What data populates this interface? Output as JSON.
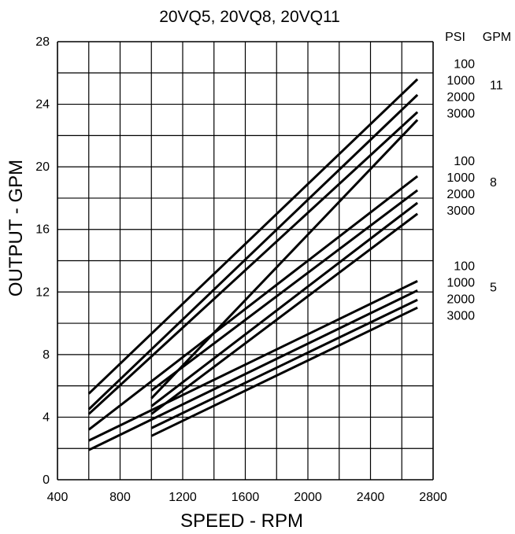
{
  "chart_data": {
    "type": "line",
    "title": "20VQ5, 20VQ8, 20VQ11",
    "xlabel": "SPEED - RPM",
    "ylabel": "OUTPUT - GPM",
    "xlim": [
      400,
      2800
    ],
    "ylim": [
      0,
      28
    ],
    "xticks": [
      "400",
      "800",
      "1200",
      "1600",
      "2000",
      "2400",
      "2800"
    ],
    "yticks": [
      "0",
      "4",
      "8",
      "12",
      "16",
      "20",
      "24",
      "28"
    ],
    "grid": true,
    "legend_headers": {
      "psi": "PSI",
      "gpm": "GPM"
    },
    "groups": [
      {
        "gpm": "11",
        "series": [
          {
            "name": "100",
            "x": [
              600,
              2700
            ],
            "y": [
              5.5,
              25.6
            ]
          },
          {
            "name": "1000",
            "x": [
              600,
              2700
            ],
            "y": [
              4.5,
              24.6
            ]
          },
          {
            "name": "2000",
            "x": [
              600,
              2700
            ],
            "y": [
              4.2,
              23.5
            ]
          },
          {
            "name": "3000",
            "x": [
              1000,
              2700
            ],
            "y": [
              5.2,
              23.0
            ]
          }
        ]
      },
      {
        "gpm": "8",
        "series": [
          {
            "name": "100",
            "x": [
              600,
              2700
            ],
            "y": [
              3.2,
              19.4
            ]
          },
          {
            "name": "1000",
            "x": [
              1000,
              2700
            ],
            "y": [
              5.7,
              18.5
            ]
          },
          {
            "name": "2000",
            "x": [
              1000,
              2700
            ],
            "y": [
              4.7,
              17.7
            ]
          },
          {
            "name": "3000",
            "x": [
              1000,
              2700
            ],
            "y": [
              4.2,
              17.0
            ]
          }
        ]
      },
      {
        "gpm": "5",
        "series": [
          {
            "name": "100",
            "x": [
              600,
              2700
            ],
            "y": [
              2.5,
              12.7
            ]
          },
          {
            "name": "1000",
            "x": [
              600,
              2700
            ],
            "y": [
              1.9,
              12.1
            ]
          },
          {
            "name": "2000",
            "x": [
              1000,
              2700
            ],
            "y": [
              3.3,
              11.5
            ]
          },
          {
            "name": "3000",
            "x": [
              1000,
              2700
            ],
            "y": [
              2.8,
              11.0
            ]
          }
        ]
      }
    ]
  }
}
